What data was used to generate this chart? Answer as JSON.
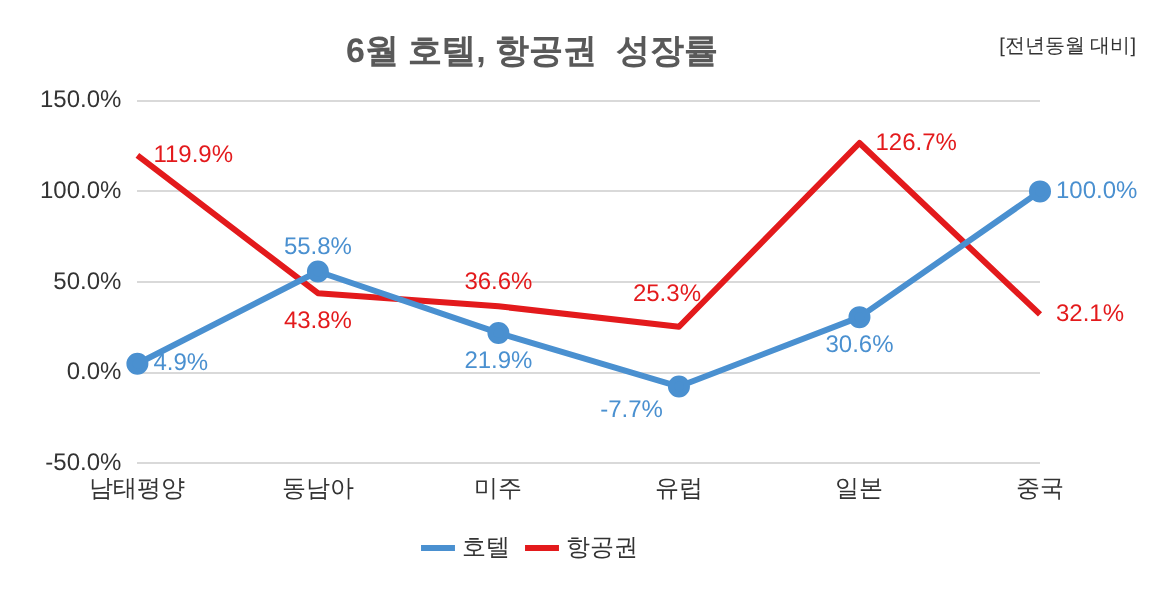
{
  "chart_data": {
    "type": "line",
    "title": "6월 호텔, 항공권  성장률",
    "annotations": [
      "[전년동월 대비]"
    ],
    "categories": [
      "남태평양",
      "동남아",
      "미주",
      "유럽",
      "일본",
      "중국"
    ],
    "series": [
      {
        "name": "호텔",
        "color": "#4a90d0",
        "marker": "circle",
        "values": [
          4.9,
          55.8,
          21.9,
          -7.7,
          30.6,
          100.0
        ],
        "value_labels": [
          "4.9%",
          "55.8%",
          "21.9%",
          "-7.7%",
          "30.6%",
          "100.0%"
        ]
      },
      {
        "name": "항공권",
        "color": "#e31a1c",
        "marker": "none",
        "values": [
          119.9,
          43.8,
          36.6,
          25.3,
          126.7,
          32.1
        ],
        "value_labels": [
          "119.9%",
          "43.8%",
          "36.6%",
          "25.3%",
          "126.7%",
          "32.1%"
        ]
      }
    ],
    "ylim": [
      -50,
      150
    ],
    "yticks": [
      {
        "value": -50,
        "label": "-50.0%"
      },
      {
        "value": 0,
        "label": "0.0%"
      },
      {
        "value": 50,
        "label": "50.0%"
      },
      {
        "value": 100,
        "label": "100.0%"
      },
      {
        "value": 150,
        "label": "150.0%"
      }
    ],
    "grid": "y",
    "legend": "bottom"
  }
}
